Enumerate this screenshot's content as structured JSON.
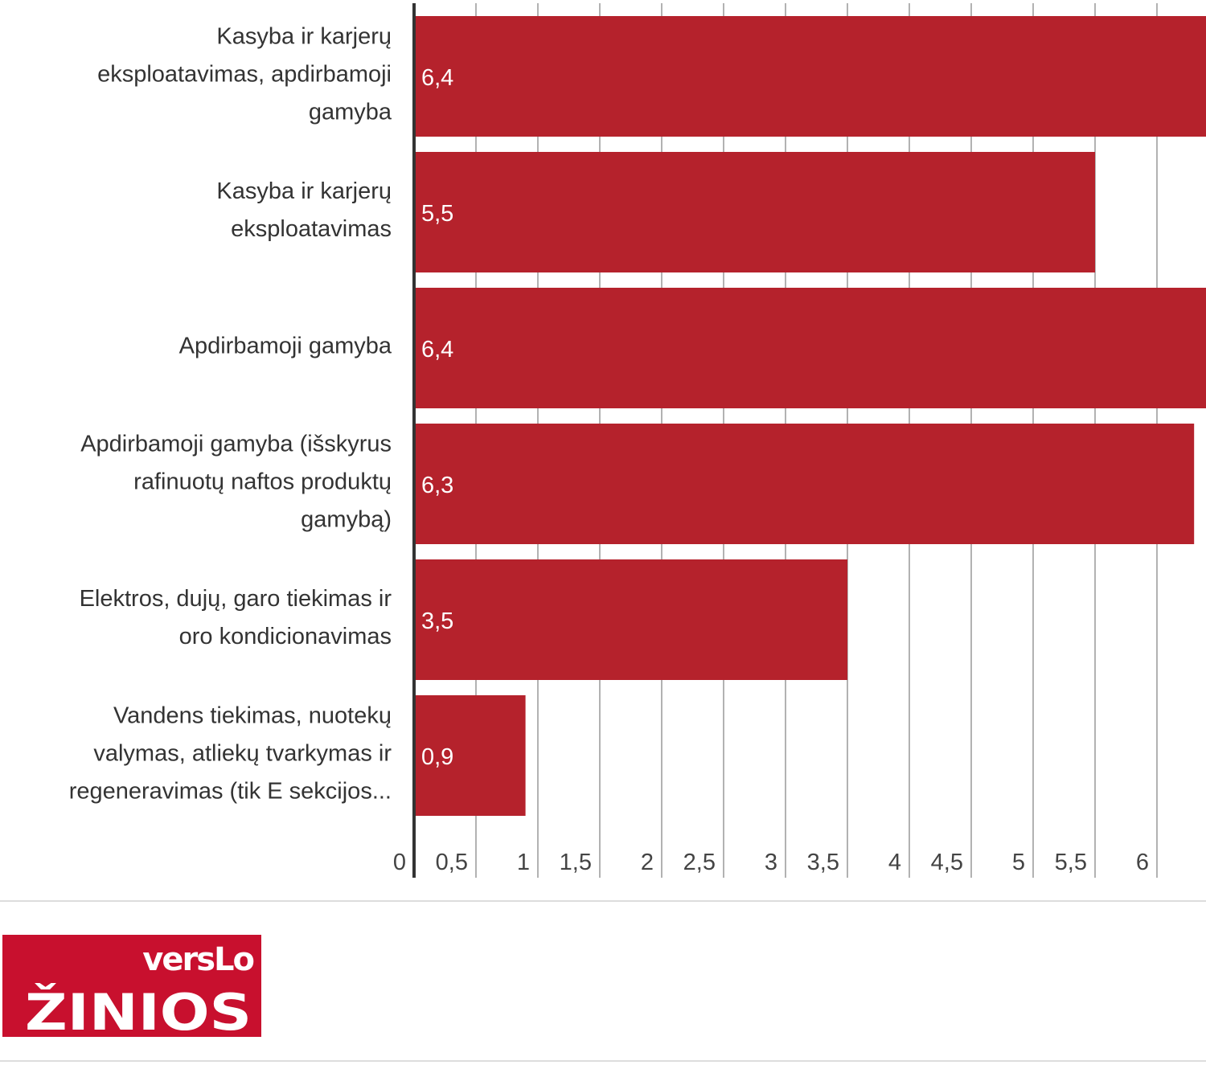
{
  "chart_data": {
    "type": "bar",
    "orientation": "horizontal",
    "categories": [
      "Kasyba ir karjerų eksploatavimas, apdirbamoji gamyba",
      "Kasyba ir karjerų eksploatavimas",
      "Apdirbamoji gamyba",
      "Apdirbamoji gamyba (išskyrus rafinuotų naftos produktų gamybą)",
      "Elektros, dujų, garo tiekimas ir oro kondicionavimas",
      "Vandens tiekimas, nuotekų valymas, atliekų tvarkymas ir regeneravimas (tik E sekcijos..."
    ],
    "values": [
      6.4,
      5.5,
      6.4,
      6.3,
      3.5,
      0.9
    ],
    "data_labels": [
      "6,4",
      "5,5",
      "6,4",
      "6,3",
      "3,5",
      "0,9"
    ],
    "xticks": [
      0,
      0.5,
      1,
      1.5,
      2,
      2.5,
      3,
      3.5,
      4,
      4.5,
      5,
      5.5,
      6
    ],
    "xtick_labels": [
      "0",
      "0,5",
      "1",
      "1,5",
      "2",
      "2,5",
      "3",
      "3,5",
      "4",
      "4,5",
      "5",
      "5,5",
      "6"
    ],
    "xlim": [
      0,
      6.4
    ],
    "grid": true,
    "title": "",
    "xlabel": "",
    "ylabel": "",
    "bar_color": "#b5222c"
  },
  "category_lines": [
    [
      "Kasyba ir karjerų",
      "eksploatavimas, apdirbamoji",
      "gamyba"
    ],
    [
      "Kasyba ir karjerų",
      "eksploatavimas"
    ],
    [
      "Apdirbamoji gamyba"
    ],
    [
      "Apdirbamoji gamyba (išskyrus",
      "rafinuotų naftos produktų",
      "gamybą)"
    ],
    [
      "Elektros, dujų, garo tiekimas ir",
      "oro kondicionavimas"
    ],
    [
      "Vandens tiekimas, nuotekų",
      "valymas, atliekų tvarkymas ir",
      "regeneravimas (tik E sekcijos..."
    ]
  ],
  "logo": {
    "line1": "versLo",
    "line2": "žinios",
    "color": "#c8102e"
  }
}
